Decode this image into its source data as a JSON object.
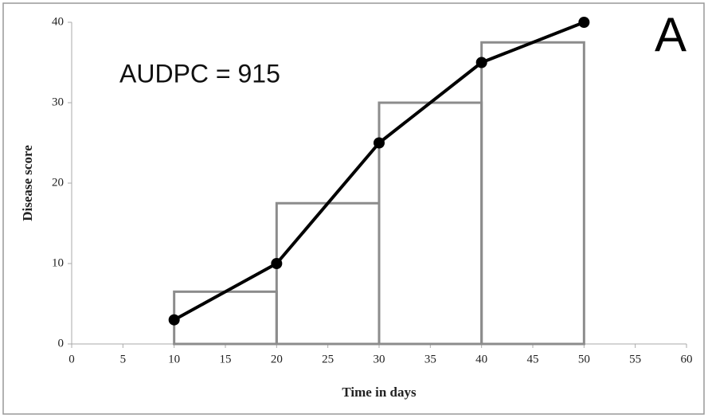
{
  "chart_data": {
    "type": "line",
    "xlabel": "Time in days",
    "ylabel": "Disease score",
    "annotation": "AUDPC = 915",
    "panel_label": "A",
    "x": [
      10,
      20,
      30,
      40,
      50
    ],
    "values": [
      3,
      10,
      25,
      35,
      40
    ],
    "color": "#000000",
    "bars": {
      "edges": [
        10,
        20,
        30,
        40,
        50
      ],
      "values": [
        6.5,
        17.5,
        30,
        37.5
      ],
      "color": "#8c8c8c"
    },
    "xlim": [
      0,
      60
    ],
    "xticks": [
      0,
      5,
      10,
      15,
      20,
      25,
      30,
      35,
      40,
      45,
      50,
      55,
      60
    ],
    "ylim": [
      0,
      40
    ],
    "yticks": [
      0,
      10,
      20,
      30,
      40
    ],
    "grid": false
  }
}
